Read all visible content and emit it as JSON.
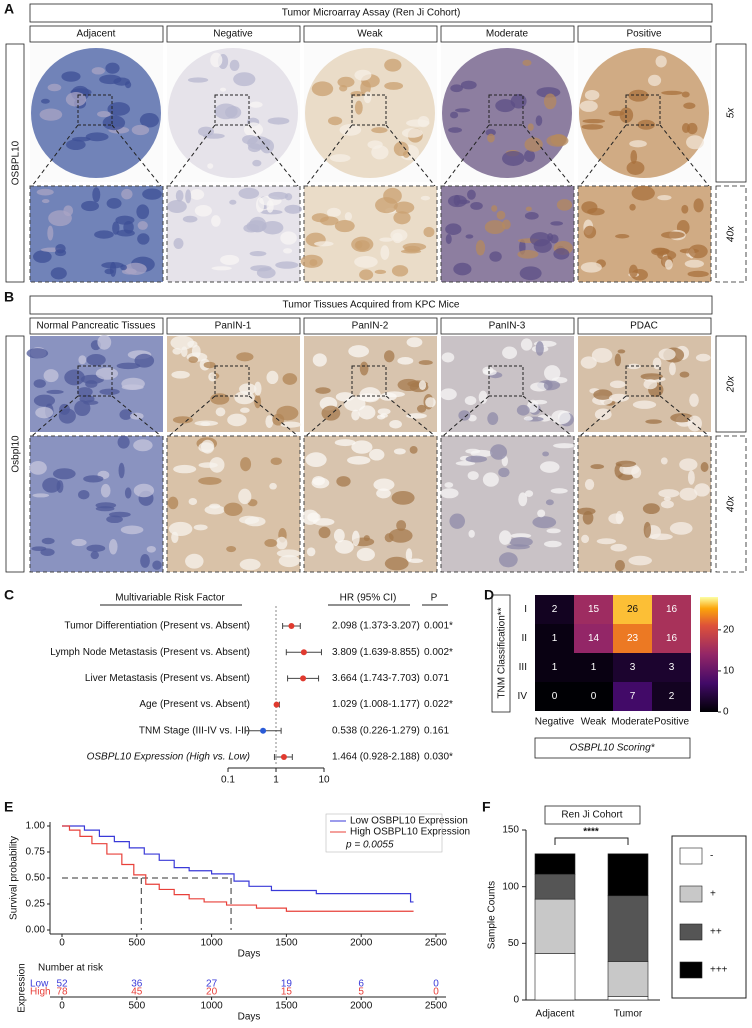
{
  "panel_labels": [
    "A",
    "B",
    "C",
    "D",
    "E",
    "F"
  ],
  "panel_a": {
    "title": "Tumor Microarray Assay (Ren Ji Cohort)",
    "columns": [
      "Adjacent",
      "Negative",
      "Weak",
      "Moderate",
      "Positive"
    ],
    "row_label": "OSBPL10",
    "magnifications": [
      "5x",
      "40x"
    ]
  },
  "panel_b": {
    "title": "Tumor Tissues Acquired from KPC Mice",
    "columns": [
      "Normal Pancreatic Tissues",
      "PanIN-1",
      "PanIN-2",
      "PanIN-3",
      "PDAC"
    ],
    "row_label": "Osbpl10",
    "magnifications": [
      "20x",
      "40x"
    ]
  },
  "chart_data": [
    {
      "type": "forest",
      "column_headers": [
        "Multivariable Risk Factor",
        "HR (95% CI)",
        "P"
      ],
      "categories": [
        "Tumor Differentiation (Present vs. Absent)",
        "Lymph Node Metastasis (Present vs. Absent)",
        "Liver Metastasis (Present vs. Absent)",
        "Age (Present vs. Absent)",
        "TNM Stage (III-IV vs. I-II)",
        "OSBPL10 Expression (High vs. Low)"
      ],
      "values": [
        2.098,
        3.809,
        3.664,
        1.029,
        0.538,
        1.464
      ],
      "ci_low": [
        1.373,
        1.639,
        1.743,
        1.008,
        0.226,
        0.928
      ],
      "ci_high": [
        3.207,
        8.855,
        7.703,
        1.177,
        1.279,
        2.188
      ],
      "value_labels": [
        "2.098 (1.373-3.207)",
        "3.809 (1.639-8.855)",
        "3.664 (1.743-7.703)",
        "1.029 (1.008-1.177)",
        "0.538 (0.226-1.279)",
        "1.464 (0.928-2.188)"
      ],
      "p_labels": [
        "0.001*",
        "0.002*",
        "0.071",
        "0.022*",
        "0.161",
        "0.030*"
      ],
      "colors": [
        "#e03a2f",
        "#e03a2f",
        "#e03a2f",
        "#e03a2f",
        "#2a5bd7",
        "#e03a2f"
      ],
      "log_x": true,
      "xlim": [
        0.1,
        10
      ],
      "xticks": [
        0.1,
        1,
        10
      ],
      "reference_x": 1
    },
    {
      "type": "heatmap",
      "x_categories": [
        "Negative",
        "Weak",
        "Moderate",
        "Positive"
      ],
      "y_categories": [
        "I",
        "II",
        "III",
        "IV"
      ],
      "values": [
        [
          2,
          15,
          26,
          16
        ],
        [
          1,
          14,
          23,
          16
        ],
        [
          1,
          1,
          3,
          3
        ],
        [
          0,
          0,
          7,
          2
        ]
      ],
      "xlabel": "OSBPL10 Scoring*",
      "ylabel": "TNM Classification**",
      "colormap": "magma",
      "clim": [
        0,
        28
      ],
      "colorbar_ticks": [
        0,
        10,
        20
      ]
    },
    {
      "type": "line",
      "ylabel": "Survival probability",
      "xlabel": "Days",
      "annotation": "p = 0.0055",
      "series": [
        {
          "name": "Low OSBPL10 Expression",
          "color": "#3a3ad8",
          "x": [
            0,
            150,
            150,
            250,
            250,
            350,
            350,
            450,
            450,
            550,
            550,
            650,
            650,
            750,
            750,
            850,
            850,
            1000,
            1000,
            1150,
            1150,
            1250,
            1250,
            1400,
            1400,
            1700,
            1700,
            2330,
            2330,
            2350
          ],
          "values": [
            1,
            1,
            0.96,
            0.96,
            0.9,
            0.9,
            0.85,
            0.85,
            0.79,
            0.79,
            0.73,
            0.73,
            0.67,
            0.67,
            0.6,
            0.6,
            0.57,
            0.57,
            0.54,
            0.54,
            0.47,
            0.47,
            0.42,
            0.42,
            0.38,
            0.38,
            0.35,
            0.35,
            0.27,
            0.27
          ]
        },
        {
          "name": "High OSBPL10 Expression",
          "color": "#e8403a",
          "x": [
            0,
            50,
            50,
            120,
            120,
            200,
            200,
            300,
            300,
            400,
            400,
            480,
            480,
            560,
            560,
            650,
            650,
            750,
            750,
            850,
            850,
            950,
            950,
            1100,
            1100,
            1300,
            1300,
            1500,
            1500,
            2350
          ],
          "values": [
            1,
            1,
            0.96,
            0.96,
            0.9,
            0.9,
            0.83,
            0.83,
            0.73,
            0.73,
            0.63,
            0.63,
            0.53,
            0.53,
            0.44,
            0.44,
            0.39,
            0.39,
            0.34,
            0.34,
            0.3,
            0.3,
            0.27,
            0.27,
            0.24,
            0.24,
            0.21,
            0.21,
            0.18,
            0.18
          ]
        }
      ],
      "xlim": [
        0,
        2500
      ],
      "xticks": [
        0,
        500,
        1000,
        1500,
        2000,
        2500
      ],
      "ylim": [
        0,
        1
      ],
      "yticks": [
        {
          "value": 0,
          "label": "0.00"
        },
        {
          "value": 0.25,
          "label": "0.25"
        },
        {
          "value": 0.5,
          "label": "0.50"
        },
        {
          "value": 0.75,
          "label": "0.75"
        },
        {
          "value": 1,
          "label": "1.00"
        }
      ],
      "reference_y": 0.5,
      "median_x": [
        530,
        1130
      ],
      "risk_table": {
        "title": "Number at risk",
        "row_label": "Expression",
        "rows": [
          {
            "name": "Low",
            "color": "#3a3ad8",
            "values": [
              52,
              36,
              27,
              19,
              6,
              0
            ]
          },
          {
            "name": "High",
            "color": "#e8403a",
            "values": [
              78,
              45,
              20,
              15,
              5,
              0
            ]
          }
        ]
      }
    },
    {
      "type": "stacked_bar",
      "title": "Ren Ji Cohort",
      "ylabel": "Sample Counts",
      "annotation": "****",
      "categories": [
        "Adjacent",
        "Tumor"
      ],
      "series": [
        {
          "name": "-",
          "color": "#ffffff",
          "values": [
            41,
            3
          ]
        },
        {
          "name": "+",
          "color": "#c8c8c8",
          "values": [
            48,
            31
          ]
        },
        {
          "name": "++",
          "color": "#555555",
          "values": [
            22,
            58
          ]
        },
        {
          "name": "+++",
          "color": "#000000",
          "values": [
            18,
            37
          ]
        }
      ],
      "ylim": [
        0,
        150
      ],
      "yticks": [
        0,
        50,
        100,
        150
      ]
    }
  ]
}
